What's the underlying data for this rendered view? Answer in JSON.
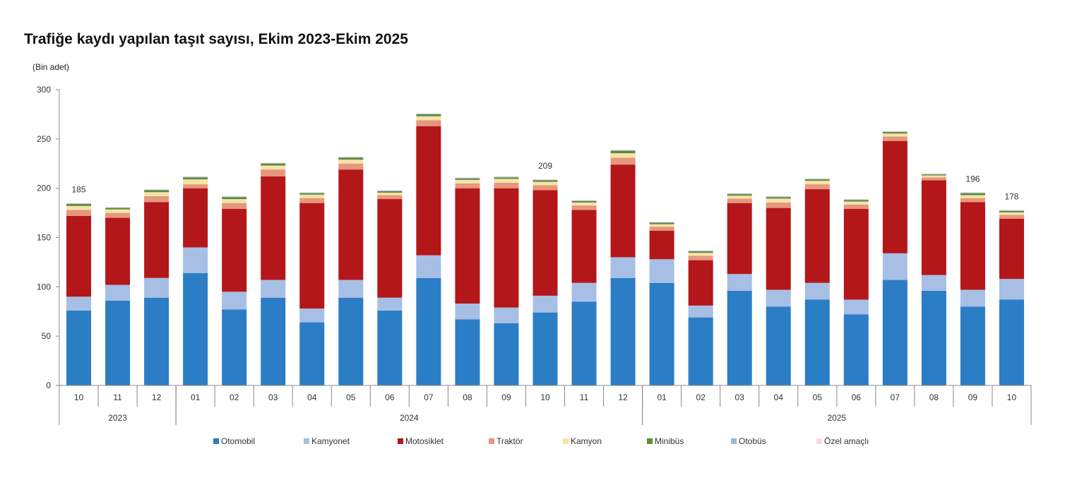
{
  "chart_data": {
    "type": "bar",
    "stacked": true,
    "title": "Trafiğe kaydı yapılan taşıt sayısı, Ekim 2023-Ekim 2025",
    "ylabel": "(Bin adet)",
    "ylim": [
      0,
      300
    ],
    "yticks": [
      0,
      50,
      100,
      150,
      200,
      250,
      300
    ],
    "grid": false,
    "legend_position": "bottom",
    "categories": [
      "10",
      "11",
      "12",
      "01",
      "02",
      "03",
      "04",
      "05",
      "06",
      "07",
      "08",
      "09",
      "10",
      "11",
      "12",
      "01",
      "02",
      "03",
      "04",
      "05",
      "06",
      "07",
      "08",
      "09",
      "10"
    ],
    "year_groups": [
      {
        "label": "2023",
        "count": 3
      },
      {
        "label": "2024",
        "count": 12
      },
      {
        "label": "2025",
        "count": 10
      }
    ],
    "series": [
      {
        "name": "Otomobil",
        "color": "#2b7dc6",
        "values": [
          76,
          86,
          89,
          114,
          77,
          89,
          64,
          89,
          76,
          109,
          67,
          63,
          74,
          85,
          109,
          104,
          69,
          96,
          80,
          87,
          72,
          107,
          96,
          80,
          87
        ]
      },
      {
        "name": "Kamyonet",
        "color": "#a7bfe4",
        "values": [
          14,
          16,
          20,
          26,
          18,
          18,
          14,
          18,
          13,
          23,
          16,
          16,
          17,
          19,
          21,
          24,
          12,
          17,
          17,
          17,
          15,
          27,
          16,
          17,
          21
        ]
      },
      {
        "name": "Motosiklet",
        "color": "#b3171a",
        "values": [
          82,
          68,
          77,
          60,
          84,
          105,
          107,
          112,
          100,
          131,
          117,
          121,
          107,
          74,
          94,
          29,
          46,
          72,
          83,
          95,
          92,
          114,
          96,
          89,
          61
        ]
      },
      {
        "name": "Traktör",
        "color": "#e6977d",
        "values": [
          6,
          5,
          6,
          4,
          6,
          7,
          5,
          6,
          4,
          6,
          5,
          5.5,
          5,
          4.5,
          7,
          4,
          4.5,
          4.5,
          5.5,
          5,
          4.5,
          4.5,
          3,
          4,
          4
        ]
      },
      {
        "name": "Kamyon",
        "color": "#f6e3a6",
        "values": [
          4,
          3.5,
          4,
          5,
          4,
          4,
          3.5,
          4,
          2.5,
          4,
          3.5,
          4,
          3.5,
          3,
          4.5,
          2.5,
          3,
          3,
          4,
          3.5,
          3,
          3,
          2,
          3,
          2.5
        ]
      },
      {
        "name": "Minibüs",
        "color": "#5f8b3b",
        "values": [
          2,
          1.5,
          2,
          2,
          2,
          2,
          1.5,
          2,
          1.5,
          2,
          1.5,
          1.5,
          1.5,
          1.5,
          2.5,
          1.5,
          1.5,
          1.5,
          1.5,
          1.5,
          1.5,
          1.5,
          1,
          2,
          1.5
        ]
      },
      {
        "name": "Otobüs",
        "color": "#9db8da",
        "values": [
          0.6,
          0.6,
          0.6,
          0.6,
          0.6,
          0.6,
          0.6,
          0.6,
          0.6,
          0.6,
          0.6,
          0.6,
          0.6,
          0.6,
          0.6,
          0.6,
          0.6,
          0.6,
          0.6,
          0.6,
          0.6,
          0.6,
          0.6,
          0.6,
          0.6
        ]
      },
      {
        "name": "Özel amaçlı",
        "color": "#f3dce4",
        "values": [
          0.4,
          0.4,
          0.4,
          0.4,
          0.4,
          0.4,
          0.4,
          0.4,
          0.4,
          0.4,
          0.4,
          0.4,
          0.4,
          0.4,
          0.4,
          0.4,
          0.4,
          0.4,
          0.4,
          0.4,
          0.4,
          0.4,
          0.4,
          0.4,
          0.4
        ]
      }
    ],
    "data_labels": [
      {
        "index": 0,
        "text": "185"
      },
      {
        "index": 12,
        "text": "209"
      },
      {
        "index": 23,
        "text": "196"
      },
      {
        "index": 24,
        "text": "178"
      }
    ]
  }
}
